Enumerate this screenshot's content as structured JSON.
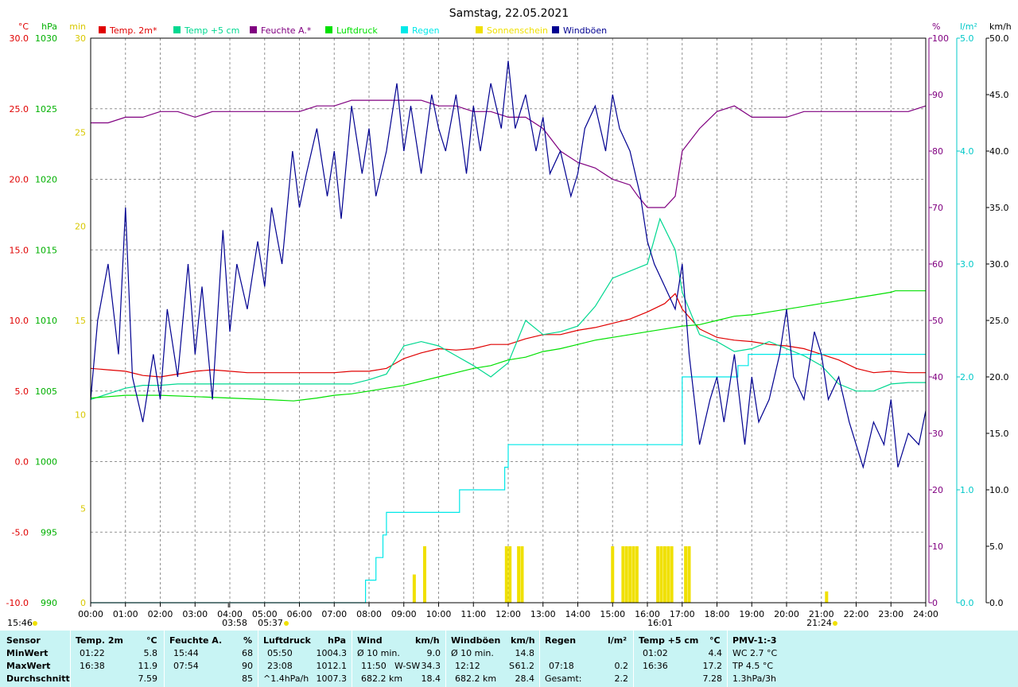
{
  "chart_data": {
    "type": "line",
    "title": "Samstag, 22.05.2021",
    "x_ticks": [
      "00:00",
      "01:00",
      "02:00",
      "03:00",
      "04:00",
      "05:00",
      "06:00",
      "07:00",
      "08:00",
      "09:00",
      "10:00",
      "11:00",
      "12:00",
      "13:00",
      "14:00",
      "15:00",
      "16:00",
      "17:00",
      "18:00",
      "19:00",
      "20:00",
      "21:00",
      "22:00",
      "23:00",
      "24:00"
    ],
    "x_range_hours": [
      0,
      24
    ],
    "grid": true,
    "legend_position": "top",
    "legend": [
      {
        "name": "Temp. 2m*",
        "color": "#e00000"
      },
      {
        "name": "Temp +5 cm",
        "color": "#00d890"
      },
      {
        "name": "Feuchte A.*",
        "color": "#800080"
      },
      {
        "name": "Luftdruck",
        "color": "#00e000"
      },
      {
        "name": "Regen",
        "color": "#00e8e8"
      },
      {
        "name": "Sonnenschein",
        "color": "#f0e000"
      },
      {
        "name": "Windböen",
        "color": "#000090"
      }
    ],
    "axes": {
      "temp": {
        "unit": "°C",
        "range": [
          -10,
          30
        ],
        "ticks": [
          "30.0",
          "25.0",
          "20.0",
          "15.0",
          "10.0",
          "5.0",
          "0.0",
          "-5.0",
          "-10.0"
        ],
        "color": "#e00000"
      },
      "pressure": {
        "unit": "hPa",
        "range": [
          990,
          1030
        ],
        "ticks": [
          "1030",
          "1025",
          "1020",
          "1015",
          "1010",
          "1005",
          "1000",
          "995",
          "990"
        ],
        "color": "#00b000"
      },
      "sun": {
        "unit": "min",
        "range": [
          0,
          30
        ],
        "ticks": [
          "30",
          "25",
          "20",
          "15",
          "10",
          "5",
          "0"
        ],
        "color": "#d8c800"
      },
      "humidity": {
        "unit": "%",
        "range": [
          0,
          100
        ],
        "ticks": [
          "100",
          "90",
          "80",
          "70",
          "60",
          "50",
          "40",
          "30",
          "20",
          "10",
          "0"
        ],
        "color": "#800080"
      },
      "rain": {
        "unit": "l/m²",
        "range": [
          0,
          5
        ],
        "ticks": [
          "5.0",
          "4.0",
          "3.0",
          "2.0",
          "1.0",
          "0.0"
        ],
        "color": "#00c8c8"
      },
      "wind": {
        "unit": "km/h",
        "range": [
          0,
          50
        ],
        "ticks": [
          "50.0",
          "45.0",
          "40.0",
          "35.0",
          "30.0",
          "25.0",
          "20.0",
          "15.0",
          "10.0",
          "5.0",
          "0.0"
        ],
        "color": "#000000"
      }
    },
    "series": [
      {
        "name": "Temp. 2m*",
        "axis": "temp",
        "color": "#e00000",
        "x": [
          0,
          0.5,
          1,
          1.5,
          2,
          2.5,
          3,
          3.5,
          4,
          4.5,
          5,
          5.5,
          6,
          6.5,
          7,
          7.5,
          8,
          8.5,
          9,
          9.5,
          10,
          10.5,
          11,
          11.5,
          12,
          12.5,
          13,
          13.5,
          14,
          14.5,
          15,
          15.5,
          16,
          16.5,
          16.8,
          17,
          17.5,
          18,
          18.5,
          19,
          19.5,
          20,
          20.5,
          21,
          21.5,
          22,
          22.5,
          23,
          23.5,
          24
        ],
        "y": [
          6.6,
          6.5,
          6.4,
          6.1,
          6.0,
          6.2,
          6.4,
          6.5,
          6.4,
          6.3,
          6.3,
          6.3,
          6.3,
          6.3,
          6.3,
          6.4,
          6.4,
          6.6,
          7.3,
          7.7,
          8.0,
          7.9,
          8.0,
          8.3,
          8.3,
          8.7,
          9.0,
          9.0,
          9.3,
          9.5,
          9.8,
          10.1,
          10.6,
          11.2,
          11.9,
          10.8,
          9.4,
          8.8,
          8.6,
          8.5,
          8.3,
          8.2,
          8.0,
          7.6,
          7.2,
          6.6,
          6.3,
          6.4,
          6.3,
          6.3
        ]
      },
      {
        "name": "Temp +5 cm",
        "axis": "temp",
        "color": "#00d890",
        "x": [
          0,
          0.5,
          1,
          1.5,
          2,
          2.5,
          3,
          3.5,
          4,
          4.5,
          5,
          5.5,
          6,
          6.5,
          7,
          7.5,
          8,
          8.5,
          9,
          9.5,
          10,
          10.5,
          11,
          11.5,
          12,
          12.5,
          13,
          13.5,
          14,
          14.5,
          15,
          15.5,
          16,
          16.36,
          16.8,
          17,
          17.5,
          18,
          18.5,
          19,
          19.5,
          20,
          20.5,
          21,
          21.5,
          22,
          22.5,
          23,
          23.5,
          24
        ],
        "y": [
          4.4,
          4.8,
          5.2,
          5.4,
          5.4,
          5.5,
          5.5,
          5.5,
          5.5,
          5.5,
          5.5,
          5.5,
          5.5,
          5.5,
          5.5,
          5.5,
          5.8,
          6.2,
          8.2,
          8.5,
          8.2,
          7.5,
          6.8,
          6.0,
          7.0,
          10.0,
          9.0,
          9.2,
          9.6,
          11.0,
          13.0,
          13.5,
          14.0,
          17.2,
          15.0,
          12.0,
          9.0,
          8.5,
          7.8,
          8.0,
          8.5,
          8.0,
          7.5,
          6.8,
          5.5,
          5.0,
          5.0,
          5.5,
          5.6,
          5.6
        ]
      },
      {
        "name": "Feuchte A.*",
        "axis": "humidity",
        "color": "#800080",
        "x": [
          0,
          0.5,
          1,
          1.5,
          2,
          2.5,
          3,
          3.5,
          4,
          4.5,
          5,
          5.5,
          6,
          6.5,
          7,
          7.5,
          8,
          8.5,
          9,
          9.5,
          10,
          10.5,
          11,
          11.5,
          12,
          12.5,
          13,
          13.5,
          14,
          14.5,
          15,
          15.5,
          15.73,
          16,
          16.5,
          16.8,
          17,
          17.5,
          18,
          18.5,
          19,
          19.5,
          20,
          20.5,
          21,
          21.5,
          22,
          22.5,
          23,
          23.5,
          24
        ],
        "y": [
          85,
          85,
          86,
          86,
          87,
          87,
          86,
          87,
          87,
          87,
          87,
          87,
          87,
          88,
          88,
          89,
          89,
          89,
          89,
          89,
          88,
          88,
          87,
          87,
          86,
          86,
          84,
          80,
          78,
          77,
          75,
          74,
          72,
          70,
          70,
          72,
          80,
          84,
          87,
          88,
          86,
          86,
          86,
          87,
          87,
          87,
          87,
          87,
          87,
          87,
          88
        ]
      },
      {
        "name": "Luftdruck",
        "axis": "pressure",
        "color": "#00e000",
        "x": [
          0,
          1,
          2,
          3,
          4,
          5,
          5.83,
          6.5,
          7,
          7.5,
          8,
          8.5,
          9,
          9.5,
          10,
          10.5,
          11,
          11.5,
          12,
          12.5,
          13,
          13.5,
          14,
          14.5,
          15,
          15.5,
          16,
          16.5,
          17,
          17.5,
          18,
          18.5,
          19,
          19.5,
          20,
          20.5,
          21,
          21.5,
          22,
          22.5,
          23,
          23.13,
          23.5,
          24
        ],
        "y": [
          1004.5,
          1004.7,
          1004.7,
          1004.6,
          1004.5,
          1004.4,
          1004.3,
          1004.5,
          1004.7,
          1004.8,
          1005.0,
          1005.2,
          1005.4,
          1005.7,
          1006.0,
          1006.3,
          1006.6,
          1006.8,
          1007.2,
          1007.4,
          1007.8,
          1008.0,
          1008.3,
          1008.6,
          1008.8,
          1009.0,
          1009.2,
          1009.4,
          1009.6,
          1009.7,
          1010.0,
          1010.3,
          1010.4,
          1010.6,
          1010.8,
          1011.0,
          1011.2,
          1011.4,
          1011.6,
          1011.8,
          1012.0,
          1012.1,
          1012.1,
          1012.1
        ]
      },
      {
        "name": "Regen",
        "axis": "rain",
        "color": "#00e8e8",
        "step": true,
        "x": [
          0,
          7.3,
          7.9,
          8.2,
          8.4,
          8.5,
          9.5,
          10.4,
          10.6,
          11.0,
          11.7,
          11.9,
          12.0,
          12.2,
          16.0,
          16.8,
          17.0,
          17.6,
          18.0,
          18.6,
          18.9,
          19.2,
          20.0,
          21.0,
          22.0,
          23.0,
          24.0
        ],
        "y": [
          0,
          0,
          0.2,
          0.4,
          0.6,
          0.8,
          0.8,
          0.8,
          1.0,
          1.0,
          1.0,
          1.2,
          1.4,
          1.4,
          1.4,
          1.4,
          2.0,
          2.0,
          2.0,
          2.1,
          2.2,
          2.2,
          2.2,
          2.2,
          2.2,
          2.2,
          2.2
        ]
      },
      {
        "name": "Windböen",
        "axis": "wind",
        "color": "#000090",
        "x": [
          0,
          0.2,
          0.5,
          0.8,
          1.0,
          1.2,
          1.5,
          1.8,
          2.0,
          2.2,
          2.5,
          2.8,
          3.0,
          3.2,
          3.5,
          3.8,
          4.0,
          4.2,
          4.5,
          4.8,
          5.0,
          5.2,
          5.5,
          5.8,
          6.0,
          6.2,
          6.5,
          6.8,
          7.0,
          7.2,
          7.5,
          7.8,
          8.0,
          8.2,
          8.5,
          8.8,
          9.0,
          9.2,
          9.5,
          9.8,
          10.0,
          10.2,
          10.5,
          10.8,
          11.0,
          11.2,
          11.5,
          11.8,
          12.0,
          12.2,
          12.5,
          12.8,
          13.0,
          13.2,
          13.5,
          13.8,
          14.0,
          14.2,
          14.5,
          14.8,
          15.0,
          15.2,
          15.5,
          15.8,
          16.0,
          16.2,
          16.5,
          16.8,
          17.0,
          17.2,
          17.5,
          17.8,
          18.0,
          18.2,
          18.5,
          18.8,
          19.0,
          19.2,
          19.5,
          19.8,
          20.0,
          20.2,
          20.5,
          20.8,
          21.0,
          21.2,
          21.5,
          21.8,
          22.0,
          22.2,
          22.5,
          22.8,
          23.0,
          23.2,
          23.5,
          23.8,
          24.0
        ],
        "y": [
          18,
          25,
          30,
          22,
          35,
          20,
          16,
          22,
          18,
          26,
          20,
          30,
          22,
          28,
          18,
          33,
          24,
          30,
          26,
          32,
          28,
          35,
          30,
          40,
          35,
          38,
          42,
          36,
          40,
          34,
          44,
          38,
          42,
          36,
          40,
          46,
          40,
          44,
          38,
          45,
          42,
          40,
          45,
          38,
          44,
          40,
          46,
          42,
          48,
          42,
          45,
          40,
          43,
          38,
          40,
          36,
          38,
          42,
          44,
          40,
          45,
          42,
          40,
          36,
          32,
          30,
          28,
          26,
          30,
          22,
          14,
          18,
          20,
          16,
          22,
          14,
          20,
          16,
          18,
          22,
          26,
          20,
          18,
          24,
          22,
          18,
          20,
          16,
          14,
          12,
          16,
          14,
          18,
          12,
          15,
          14,
          17
        ]
      },
      {
        "name": "Sonnenschein",
        "axis": "sun",
        "color": "#f0e000",
        "bars": true,
        "x": [
          9.3,
          9.6,
          11.95,
          12.05,
          12.3,
          12.4,
          15.0,
          15.3,
          15.4,
          15.5,
          15.6,
          15.7,
          16.3,
          16.4,
          16.5,
          16.6,
          16.7,
          17.1,
          17.2,
          21.15
        ],
        "y": [
          1.5,
          3.0,
          3.0,
          3.0,
          3.0,
          3.0,
          3.0,
          3.0,
          3.0,
          3.0,
          3.0,
          3.0,
          3.0,
          3.0,
          3.0,
          3.0,
          3.0,
          3.0,
          3.0,
          0.6
        ]
      }
    ],
    "annotations": [
      {
        "label": "03:58",
        "kind": "sunrise"
      },
      {
        "label": "05:37",
        "kind": "sun"
      },
      {
        "label": "15:46",
        "kind": "moon"
      },
      {
        "label": "16:01",
        "kind": "max"
      },
      {
        "label": "21:24",
        "kind": "sunset"
      }
    ]
  },
  "stats": {
    "header": [
      "Sensor",
      "Temp. 2m",
      "°C",
      "Feuchte A.",
      "%",
      "Luftdruck",
      "hPa",
      "Wind",
      "km/h",
      "Windböen",
      "km/h",
      "Regen",
      "l/m²",
      "Temp +5 cm",
      "°C",
      "PMV-1:-3"
    ],
    "rows": {
      "labels": [
        "MinWert",
        "MaxWert",
        "Durchschnitt"
      ],
      "temp": [
        [
          "01:22",
          "5.8"
        ],
        [
          "16:38",
          "11.9"
        ],
        [
          "",
          "7.59"
        ]
      ],
      "humidity": [
        [
          "15:44",
          "68"
        ],
        [
          "07:54",
          "90"
        ],
        [
          "",
          "85"
        ]
      ],
      "pressure": [
        [
          "05:50",
          "1004.3"
        ],
        [
          "23:08",
          "1012.1"
        ],
        [
          "^1.4hPa/h",
          "1007.3"
        ]
      ],
      "wind": [
        [
          "Ø 10 min.",
          "",
          "9.0"
        ],
        [
          "11:50",
          "W-SW",
          "34.3"
        ],
        [
          "682.2 km",
          "",
          "18.4"
        ]
      ],
      "gust": [
        [
          "Ø 10 min.",
          "",
          "14.8"
        ],
        [
          "12:12",
          "S",
          "61.2"
        ],
        [
          "682.2 km",
          "",
          "28.4"
        ]
      ],
      "rain": [
        [
          "",
          ""
        ],
        [
          "07:18",
          "0.2"
        ],
        [
          "Gesamt:",
          "2.2"
        ]
      ],
      "temp5": [
        [
          "01:02",
          "4.4"
        ],
        [
          "16:36",
          "17.2"
        ],
        [
          "",
          "7.28"
        ]
      ],
      "pmv": [
        "WC 2.7 °C",
        "TP 4.5 °C",
        "1.3hPa/3h"
      ]
    }
  }
}
